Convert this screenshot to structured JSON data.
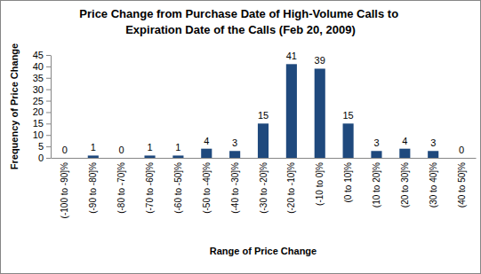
{
  "chart_data": {
    "type": "bar",
    "title": "Price Change from Purchase Date of High-Volume Calls to Expiration Date of the Calls (Feb 20, 2009)",
    "x_label": "Range of Price Change",
    "y_label": "Frequency of Price Change",
    "categories": [
      "(-100 to -90]%",
      "(-90 to -80]%",
      "(-80 to -70]%",
      "(-70 to -60]%",
      "(-60 to -50]%",
      "(-50 to -40]%",
      "(-40 to -30]%",
      "(-30 to -20]%",
      "(-20 to -10]%",
      "(-10 to 0]%",
      "(0 to 10]%",
      "(10 to 20]%",
      "(20 to 30]%",
      "(30 to 40]%",
      "(40 to 50]%"
    ],
    "values": [
      0,
      1,
      0,
      1,
      1,
      4,
      3,
      15,
      41,
      39,
      15,
      3,
      4,
      3,
      0
    ],
    "color": "#1f497d",
    "ylim": [
      0,
      45
    ],
    "yticks": [
      0,
      5,
      10,
      15,
      20,
      25,
      30,
      35,
      40,
      45
    ],
    "grid": false,
    "data_labels": true
  }
}
